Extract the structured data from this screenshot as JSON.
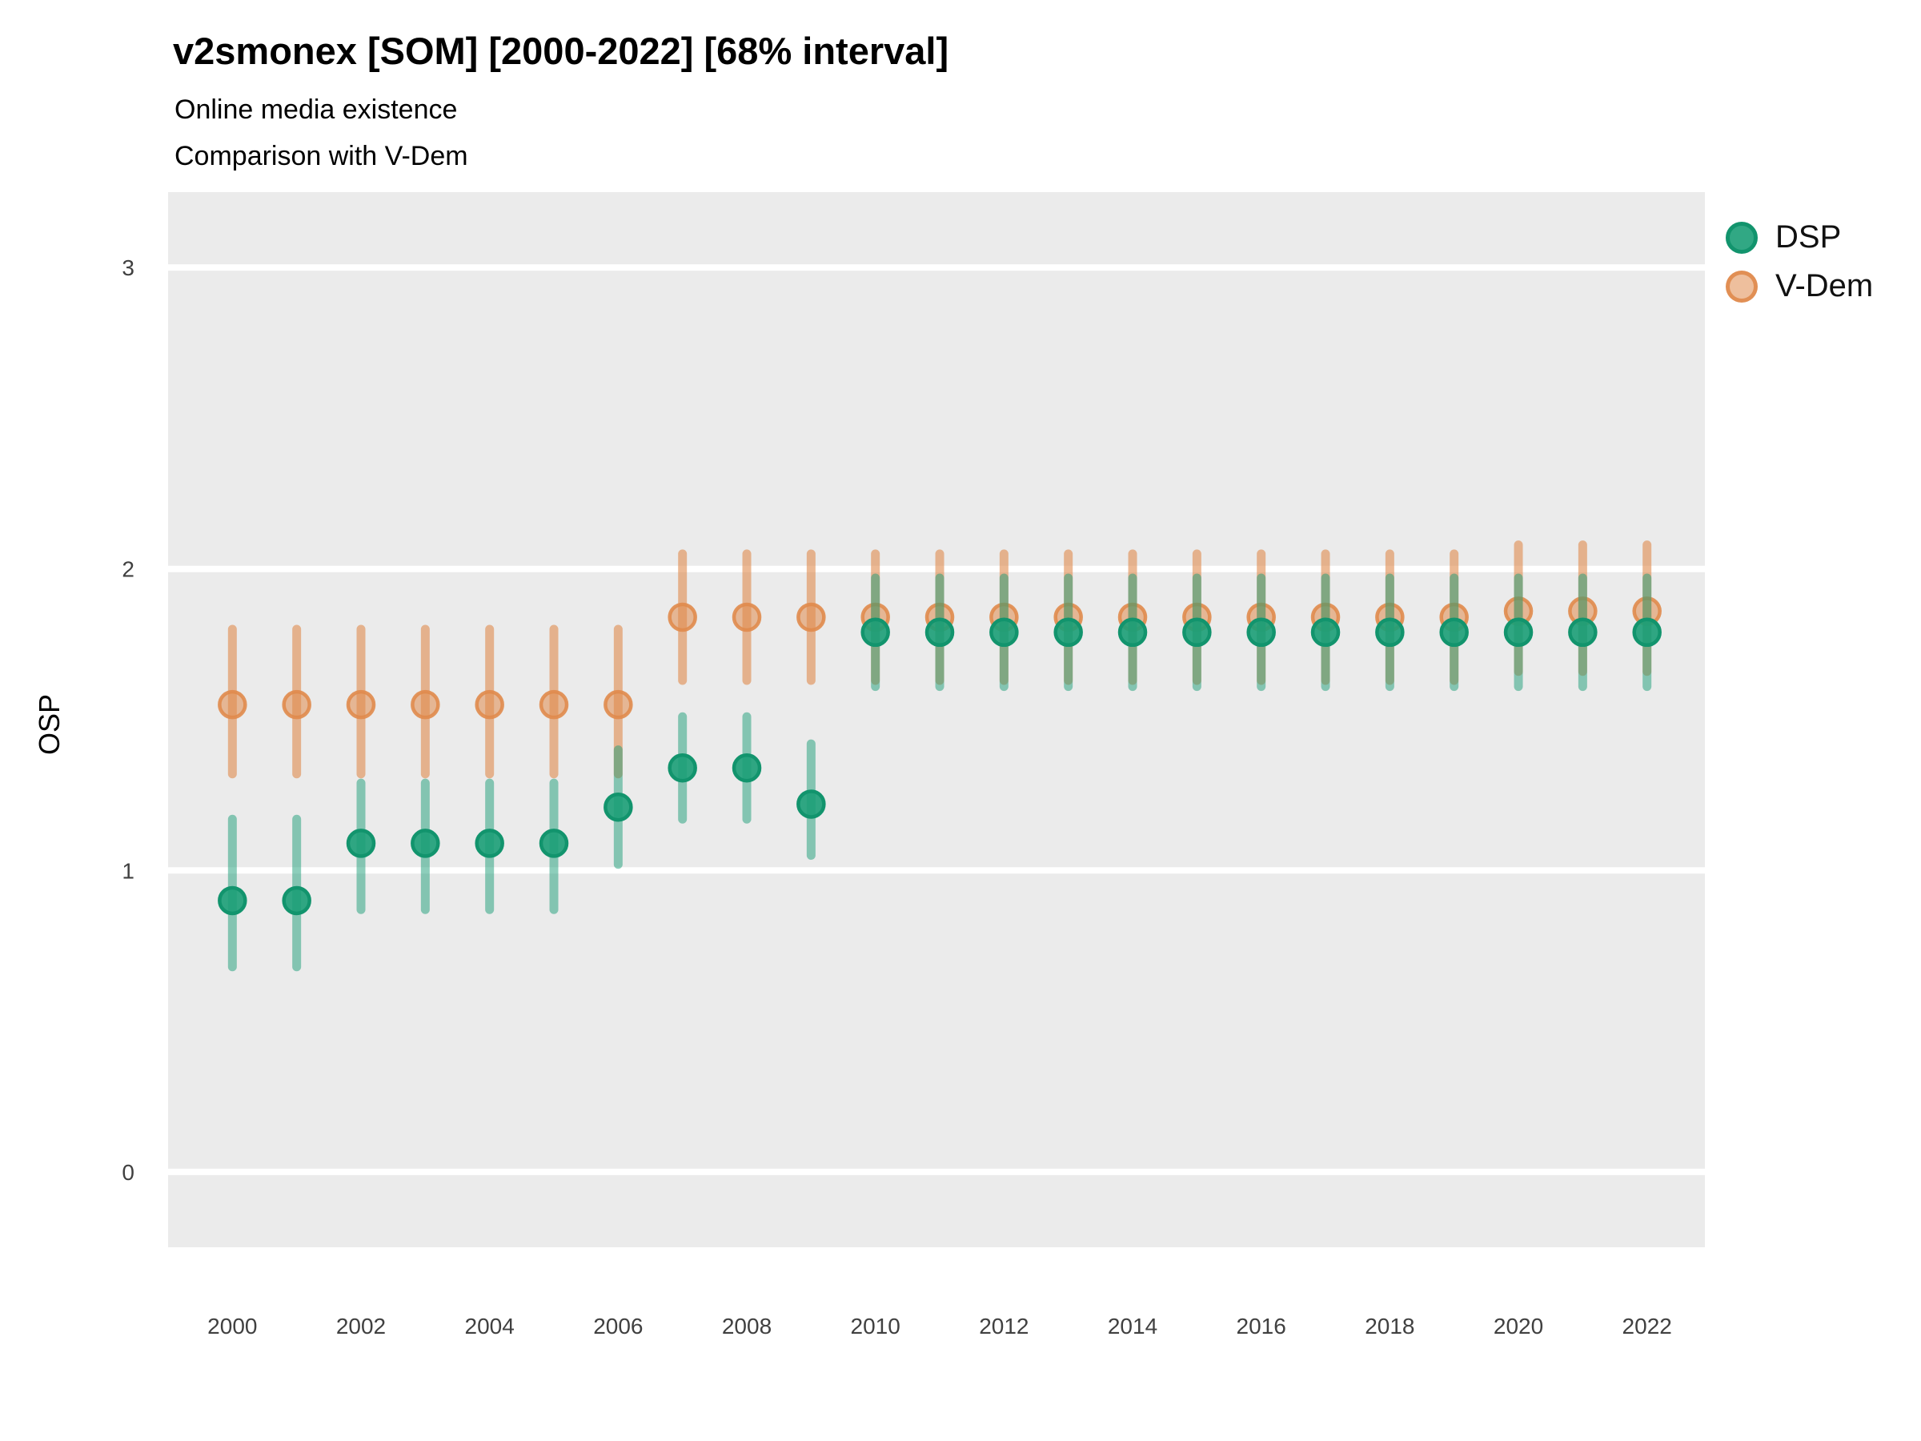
{
  "header": {
    "title": "v2smonex [SOM] [2000-2022] [68% interval]",
    "subtitle": "Online media existence",
    "subtitle2": "Comparison with V-Dem"
  },
  "chart_data": {
    "type": "pointrange",
    "title": "v2smonex [SOM] [2000-2022] [68% interval]",
    "subtitle": "Online media existence",
    "caption": "Comparison with V-Dem",
    "xlabel": "",
    "ylabel": "OSP",
    "interval": "68%",
    "legend_position": "right",
    "grid": "major-horizontal-white-on-gray",
    "panel_bg": "#EBEBEB",
    "gridline_color": "#FFFFFF",
    "xlim": [
      1999.0,
      2022.9
    ],
    "ylim": [
      -0.25,
      3.25
    ],
    "yticks": [
      0,
      1,
      2,
      3
    ],
    "xticks": [
      2000,
      2002,
      2004,
      2006,
      2008,
      2010,
      2012,
      2014,
      2016,
      2018,
      2020,
      2022
    ],
    "years": [
      2000,
      2001,
      2002,
      2003,
      2004,
      2005,
      2006,
      2007,
      2008,
      2009,
      2010,
      2011,
      2012,
      2013,
      2014,
      2015,
      2016,
      2017,
      2018,
      2019,
      2020,
      2021,
      2022
    ],
    "series": [
      {
        "name": "DSP",
        "base_color": "#1B9E77",
        "point_fill": "rgba(27,158,119,0.9)",
        "point_stroke": "rgba(18,148,109,1)",
        "bar_color": "rgba(27,158,119,0.5)",
        "mean": [
          0.9,
          0.9,
          1.09,
          1.09,
          1.09,
          1.09,
          1.21,
          1.34,
          1.34,
          1.22,
          1.79,
          1.79,
          1.79,
          1.79,
          1.79,
          1.79,
          1.79,
          1.79,
          1.79,
          1.79,
          1.79,
          1.79,
          1.79
        ],
        "lo": [
          0.68,
          0.68,
          0.87,
          0.87,
          0.87,
          0.87,
          1.02,
          1.17,
          1.17,
          1.05,
          1.61,
          1.61,
          1.61,
          1.61,
          1.61,
          1.61,
          1.61,
          1.61,
          1.61,
          1.61,
          1.61,
          1.61,
          1.61
        ],
        "hi": [
          1.17,
          1.17,
          1.29,
          1.29,
          1.29,
          1.29,
          1.4,
          1.51,
          1.51,
          1.42,
          1.97,
          1.97,
          1.97,
          1.97,
          1.97,
          1.97,
          1.97,
          1.97,
          1.97,
          1.97,
          1.97,
          1.97,
          1.97
        ]
      },
      {
        "name": "V-Dem",
        "base_color": "#E08B4C",
        "point_fill": "rgba(224,139,76,0.55)",
        "point_stroke": "rgba(224,139,76,0.9)",
        "bar_color": "rgba(224,139,76,0.6)",
        "mean": [
          1.55,
          1.55,
          1.55,
          1.55,
          1.55,
          1.55,
          1.55,
          1.84,
          1.84,
          1.84,
          1.84,
          1.84,
          1.84,
          1.84,
          1.84,
          1.84,
          1.84,
          1.84,
          1.84,
          1.84,
          1.86,
          1.86,
          1.86
        ],
        "lo": [
          1.32,
          1.32,
          1.32,
          1.32,
          1.32,
          1.32,
          1.32,
          1.63,
          1.63,
          1.63,
          1.63,
          1.63,
          1.63,
          1.63,
          1.63,
          1.63,
          1.63,
          1.63,
          1.63,
          1.63,
          1.66,
          1.66,
          1.66
        ],
        "hi": [
          1.8,
          1.8,
          1.8,
          1.8,
          1.8,
          1.8,
          1.8,
          2.05,
          2.05,
          2.05,
          2.05,
          2.05,
          2.05,
          2.05,
          2.05,
          2.05,
          2.05,
          2.05,
          2.05,
          2.05,
          2.08,
          2.08,
          2.08
        ]
      }
    ]
  }
}
